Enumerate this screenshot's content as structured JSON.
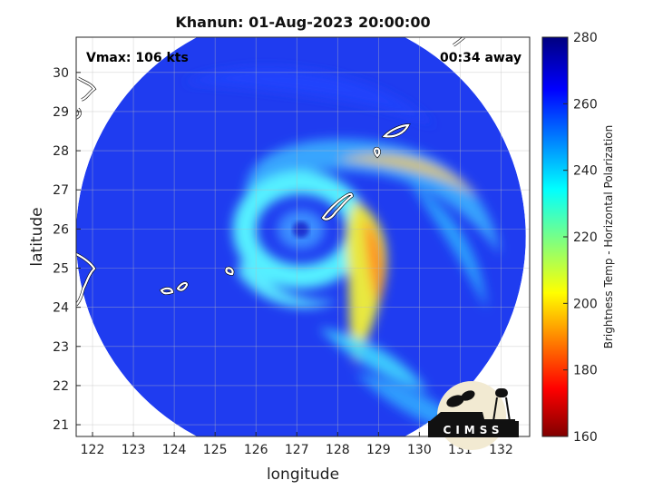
{
  "title": "Khanun: 01-Aug-2023 20:00:00",
  "annotations": {
    "vmax": "Vmax: 106 kts",
    "time_away": "00:34 away"
  },
  "axes": {
    "xlabel": "longitude",
    "ylabel": "latitude",
    "xlim": [
      121.6,
      132.7
    ],
    "ylim": [
      20.7,
      30.9
    ],
    "xticks": [
      122,
      123,
      124,
      125,
      126,
      127,
      128,
      129,
      130,
      131,
      132
    ],
    "yticks": [
      21,
      22,
      23,
      24,
      25,
      26,
      27,
      28,
      29,
      30
    ],
    "grid": true
  },
  "colorbar": {
    "label": "Brightness Temp - Horizontal Polarization",
    "range": [
      160,
      280
    ],
    "ticks": [
      160,
      180,
      200,
      220,
      240,
      260,
      280
    ],
    "colormap": "jet"
  },
  "storm": {
    "name": "Khanun",
    "center": {
      "lon": 127.1,
      "lat": 25.7
    },
    "swath_center": {
      "lon": 127.1,
      "lat": 25.8
    }
  },
  "logo": {
    "text": "CIMSS"
  },
  "colors": {
    "deep_blue": "#1f3cf0",
    "cyan": "#3fe0ff",
    "yellow": "#f0e040",
    "orange": "#ff8a20",
    "coast": "#ffffff"
  }
}
